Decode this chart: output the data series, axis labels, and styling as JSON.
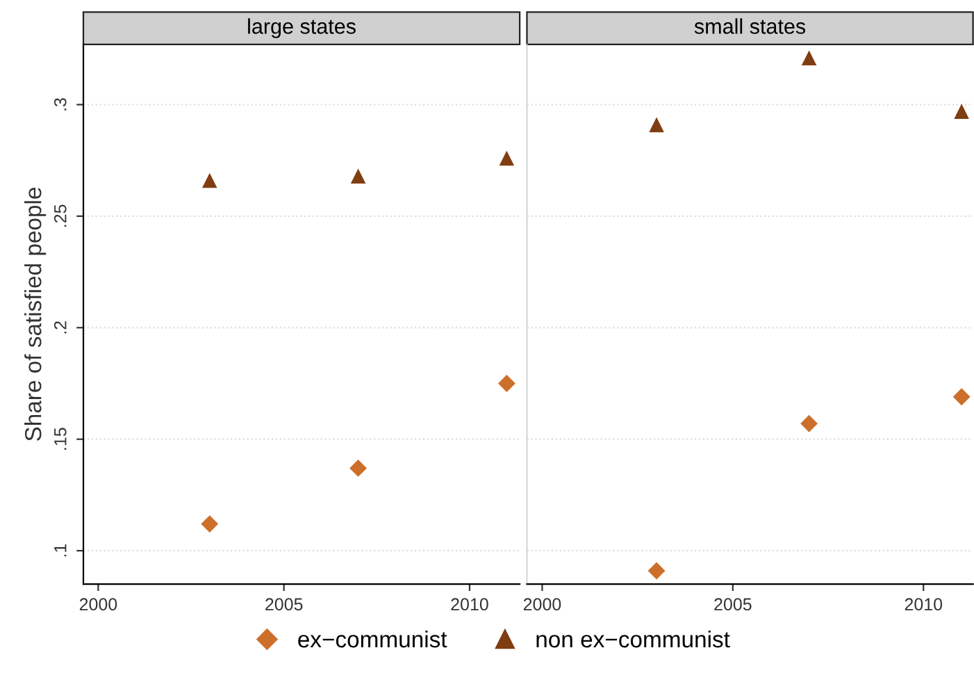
{
  "chart_data": [
    {
      "type": "scatter",
      "title": "large states",
      "ylabel": "Share of satisfied people",
      "x": [
        2003,
        2007,
        2011
      ],
      "series": [
        {
          "name": "ex−communist",
          "color": "#cd6f2a",
          "marker": "diamond",
          "values": [
            0.112,
            0.137,
            0.175
          ]
        },
        {
          "name": "non ex−communist",
          "color": "#7f3d12",
          "marker": "triangle",
          "values": [
            0.266,
            0.268,
            0.276
          ]
        }
      ],
      "xlim": [
        1999.6,
        2011.35
      ],
      "xticks": [
        2000,
        2005,
        2010
      ],
      "ylim": [
        0.085,
        0.327
      ],
      "yticks": [
        {
          "value": 0.1,
          "label": ".1"
        },
        {
          "value": 0.15,
          "label": ".15"
        },
        {
          "value": 0.2,
          "label": ".2"
        },
        {
          "value": 0.25,
          "label": ".25"
        },
        {
          "value": 0.3,
          "label": ".3"
        }
      ],
      "grid": "y",
      "legend": "bottom"
    },
    {
      "type": "scatter",
      "title": "small states",
      "x": [
        2003,
        2007,
        2011
      ],
      "series": [
        {
          "name": "ex−communist",
          "color": "#cd6f2a",
          "marker": "diamond",
          "values": [
            0.091,
            0.157,
            0.169
          ]
        },
        {
          "name": "non ex−communist",
          "color": "#7f3d12",
          "marker": "triangle",
          "values": [
            0.291,
            0.321,
            0.297
          ]
        }
      ],
      "xlim": [
        1999.6,
        2011.3
      ],
      "xticks": [
        2000,
        2005,
        2010
      ],
      "ylim": [
        0.085,
        0.327
      ],
      "yticks": [
        {
          "value": 0.1,
          "label": null
        },
        {
          "value": 0.15,
          "label": null
        },
        {
          "value": 0.2,
          "label": null
        },
        {
          "value": 0.25,
          "label": null
        },
        {
          "value": 0.3,
          "label": null
        }
      ],
      "grid": "y",
      "tick_labels": "x",
      "legend": "bottom"
    }
  ]
}
